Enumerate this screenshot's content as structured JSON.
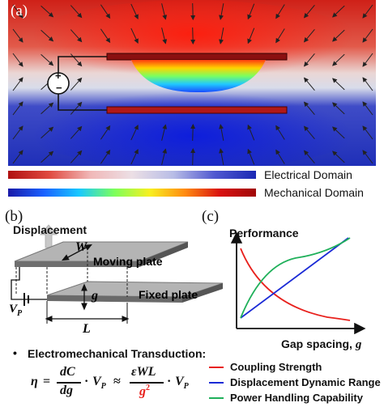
{
  "panel_a": {
    "letter": "(a)",
    "source_plus": "+",
    "source_minus": "−"
  },
  "scales": {
    "electrical_label": "Electrical Domain",
    "mechanical_label": "Mechanical Domain"
  },
  "panel_b": {
    "letter": "(b)",
    "displacement_label": "Displacement",
    "w_label": "W",
    "moving_plate_label": "Moving plate",
    "g_label": "g",
    "fixed_plate_label": "Fixed plate",
    "vp_label": "V",
    "vp_sub": "P",
    "l_label": "L"
  },
  "panel_c": {
    "letter": "(c)",
    "y_label": "Performance",
    "x_label": "Gap spacing, ",
    "x_var": "g",
    "legend": [
      {
        "name": "Coupling Strength",
        "color": "#e8201c"
      },
      {
        "name": "Displacement Dynamic Range",
        "color": "#1a2ad6"
      },
      {
        "name": "Power Handling Capability",
        "color": "#1fb05a"
      }
    ]
  },
  "transduction": {
    "bullet": "•",
    "heading": "Electromechanical Transduction:"
  },
  "equation": {
    "eta": "η",
    "equals": "=",
    "dC": "dC",
    "dg": "dg",
    "dot": "·",
    "vp": "V",
    "vp_sub": "P",
    "approx": "≈",
    "num": "εWL",
    "den": "g",
    "den_exp": "2"
  }
}
